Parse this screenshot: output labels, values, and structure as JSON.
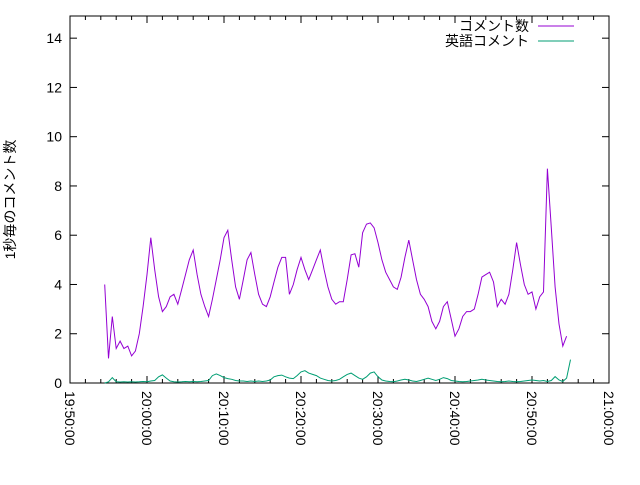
{
  "chart_data": {
    "type": "line",
    "title": "",
    "xlabel": "",
    "ylabel": "1秒毎のコメント数",
    "xlim": [
      "19:50:00",
      "21:00:00"
    ],
    "ylim": [
      0,
      14.9
    ],
    "y_ticks": [
      0,
      2,
      4,
      6,
      8,
      10,
      12,
      14
    ],
    "x_tick_labels": [
      "19:50:00",
      "20:00:00",
      "20:10:00",
      "20:20:00",
      "20:30:00",
      "20:40:00",
      "20:50:00",
      "21:00:00"
    ],
    "x_minor_tick_minutes": 2,
    "grid": false,
    "legend_position": "top-right-inside",
    "frame_color": "#000000",
    "x": [
      "19:54:30",
      "19:55:00",
      "19:55:30",
      "19:56:00",
      "19:56:30",
      "19:57:00",
      "19:57:30",
      "19:58:00",
      "19:58:30",
      "19:59:00",
      "19:59:30",
      "20:00:00",
      "20:00:30",
      "20:01:00",
      "20:01:30",
      "20:02:00",
      "20:02:30",
      "20:03:00",
      "20:03:30",
      "20:04:00",
      "20:04:30",
      "20:05:00",
      "20:05:30",
      "20:06:00",
      "20:06:30",
      "20:07:00",
      "20:07:30",
      "20:08:00",
      "20:08:30",
      "20:09:00",
      "20:09:30",
      "20:10:00",
      "20:10:30",
      "20:11:00",
      "20:11:30",
      "20:12:00",
      "20:12:30",
      "20:13:00",
      "20:13:30",
      "20:14:00",
      "20:14:30",
      "20:15:00",
      "20:15:30",
      "20:16:00",
      "20:16:30",
      "20:17:00",
      "20:17:30",
      "20:18:00",
      "20:18:30",
      "20:19:00",
      "20:19:30",
      "20:20:00",
      "20:20:30",
      "20:21:00",
      "20:21:30",
      "20:22:00",
      "20:22:30",
      "20:23:00",
      "20:23:30",
      "20:24:00",
      "20:24:30",
      "20:25:00",
      "20:25:30",
      "20:26:00",
      "20:26:30",
      "20:27:00",
      "20:27:30",
      "20:28:00",
      "20:28:30",
      "20:29:00",
      "20:29:30",
      "20:30:00",
      "20:30:30",
      "20:31:00",
      "20:31:30",
      "20:32:00",
      "20:32:30",
      "20:33:00",
      "20:33:30",
      "20:34:00",
      "20:34:30",
      "20:35:00",
      "20:35:30",
      "20:36:00",
      "20:36:30",
      "20:37:00",
      "20:37:30",
      "20:38:00",
      "20:38:30",
      "20:39:00",
      "20:39:30",
      "20:40:00",
      "20:40:30",
      "20:41:00",
      "20:41:30",
      "20:42:00",
      "20:42:30",
      "20:43:00",
      "20:43:30",
      "20:44:00",
      "20:44:30",
      "20:45:00",
      "20:45:30",
      "20:46:00",
      "20:46:30",
      "20:47:00",
      "20:47:30",
      "20:48:00",
      "20:48:30",
      "20:49:00",
      "20:49:30",
      "20:50:00",
      "20:50:30",
      "20:51:00",
      "20:51:30",
      "20:52:00",
      "20:52:30",
      "20:53:00",
      "20:53:30",
      "20:54:00",
      "20:54:30",
      "20:55:00"
    ],
    "series": [
      {
        "name": "コメント数",
        "color": "#9400d3",
        "values": [
          4.0,
          1.0,
          2.7,
          1.4,
          1.7,
          1.4,
          1.5,
          1.1,
          1.3,
          2.0,
          3.1,
          4.4,
          5.9,
          4.6,
          3.5,
          2.9,
          3.1,
          3.5,
          3.6,
          3.2,
          3.8,
          4.4,
          5.0,
          5.4,
          4.4,
          3.6,
          3.1,
          2.7,
          3.4,
          4.2,
          5.0,
          5.9,
          6.2,
          5.0,
          3.9,
          3.4,
          4.2,
          5.0,
          5.3,
          4.4,
          3.6,
          3.2,
          3.1,
          3.5,
          4.1,
          4.7,
          5.1,
          5.1,
          3.6,
          4.0,
          4.6,
          5.1,
          4.6,
          4.2,
          4.6,
          5.0,
          5.4,
          4.6,
          3.9,
          3.4,
          3.2,
          3.3,
          3.3,
          4.2,
          5.2,
          5.25,
          4.7,
          6.1,
          6.45,
          6.5,
          6.3,
          5.7,
          5.0,
          4.5,
          4.2,
          3.9,
          3.8,
          4.3,
          5.1,
          5.8,
          5.0,
          4.2,
          3.6,
          3.4,
          3.1,
          2.5,
          2.2,
          2.5,
          3.1,
          3.3,
          2.6,
          1.9,
          2.2,
          2.7,
          2.9,
          2.9,
          3.0,
          3.6,
          4.3,
          4.4,
          4.5,
          4.1,
          3.1,
          3.4,
          3.2,
          3.6,
          4.6,
          5.7,
          4.8,
          4.0,
          3.6,
          3.7,
          3.0,
          3.5,
          3.7,
          8.7,
          6.3,
          3.9,
          2.4,
          1.5,
          1.9,
          null
        ]
      },
      {
        "name": "英語コメント",
        "color": "#009e73",
        "values": [
          0.0,
          0.05,
          0.22,
          0.05,
          0.04,
          0.05,
          0.04,
          0.05,
          0.04,
          0.05,
          0.06,
          0.05,
          0.08,
          0.1,
          0.25,
          0.33,
          0.2,
          0.08,
          0.05,
          0.04,
          0.05,
          0.06,
          0.05,
          0.06,
          0.05,
          0.06,
          0.08,
          0.1,
          0.3,
          0.37,
          0.3,
          0.22,
          0.18,
          0.15,
          0.1,
          0.08,
          0.08,
          0.06,
          0.08,
          0.06,
          0.08,
          0.06,
          0.08,
          0.12,
          0.25,
          0.3,
          0.32,
          0.25,
          0.2,
          0.18,
          0.3,
          0.45,
          0.5,
          0.4,
          0.35,
          0.3,
          0.2,
          0.15,
          0.1,
          0.08,
          0.1,
          0.15,
          0.25,
          0.35,
          0.4,
          0.3,
          0.2,
          0.15,
          0.25,
          0.4,
          0.45,
          0.25,
          0.12,
          0.08,
          0.06,
          0.05,
          0.08,
          0.12,
          0.15,
          0.12,
          0.08,
          0.06,
          0.1,
          0.15,
          0.2,
          0.15,
          0.1,
          0.15,
          0.22,
          0.18,
          0.1,
          0.08,
          0.06,
          0.05,
          0.06,
          0.08,
          0.1,
          0.12,
          0.15,
          0.12,
          0.1,
          0.08,
          0.06,
          0.05,
          0.06,
          0.08,
          0.06,
          0.05,
          0.06,
          0.08,
          0.1,
          0.12,
          0.1,
          0.08,
          0.1,
          0.06,
          0.1,
          0.26,
          0.12,
          0.06,
          0.2,
          0.95
        ]
      }
    ]
  }
}
